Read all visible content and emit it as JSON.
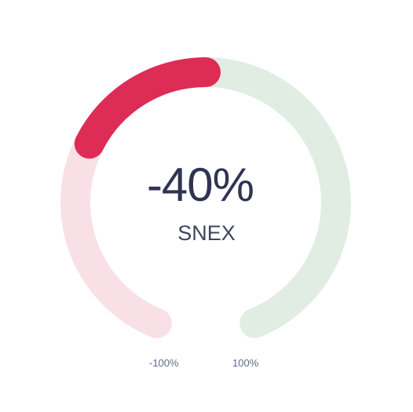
{
  "gauge": {
    "value": -40,
    "value_label": "-40%",
    "name": "SNEX",
    "min_label": "-100%",
    "max_label": "100%",
    "min": -100,
    "max": 100,
    "colors": {
      "negative_fill": "#dd2c55",
      "negative_track": "#f9e0e6",
      "positive_track": "#e1ede2",
      "text": "#2f3452",
      "tick_text": "#5d6c88"
    }
  }
}
